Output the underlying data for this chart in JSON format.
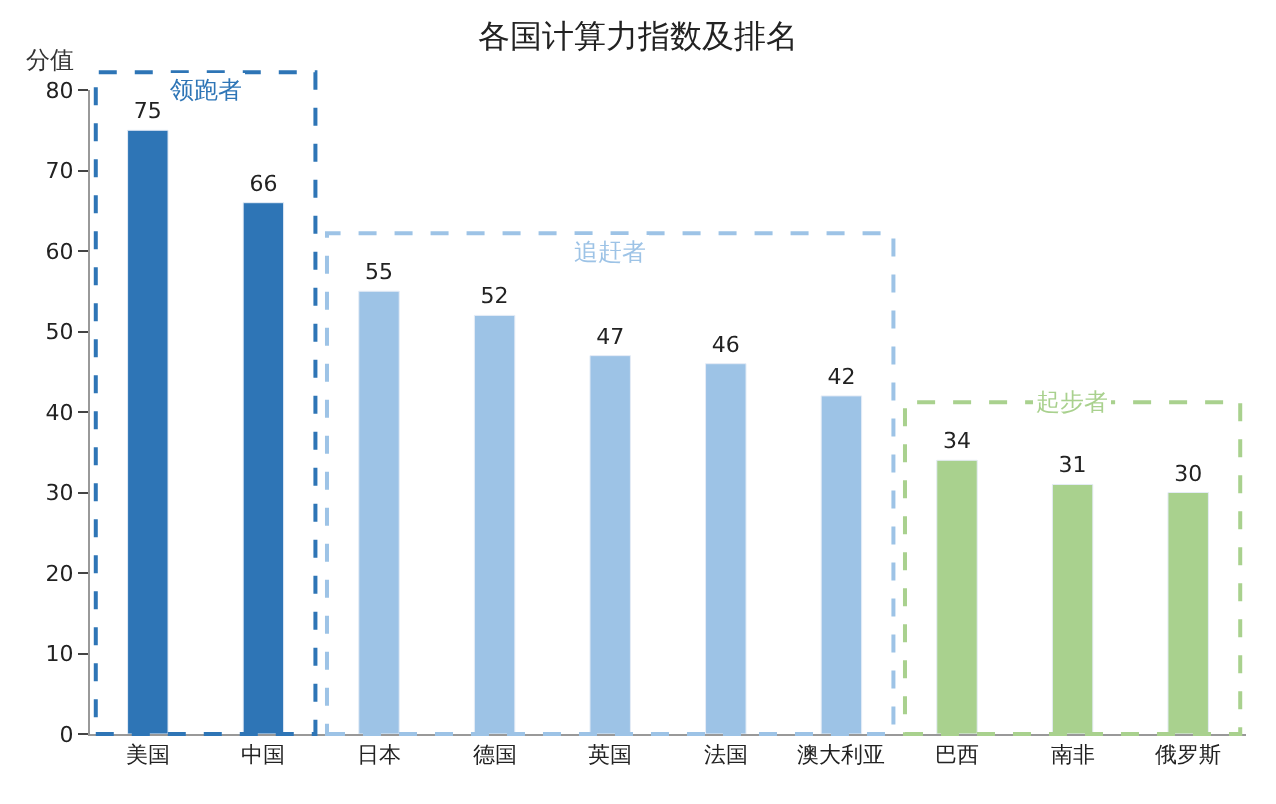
{
  "chart_data": {
    "type": "bar",
    "title": "各国计算力指数及排名",
    "ylabel": "分值",
    "categories": [
      "美国",
      "中国",
      "日本",
      "德国",
      "英国",
      "法国",
      "澳大利亚",
      "巴西",
      "南非",
      "俄罗斯"
    ],
    "series": [
      {
        "name": "领跑者",
        "color": "#2e75b6",
        "values": [
          75,
          66,
          null,
          null,
          null,
          null,
          null,
          null,
          null,
          null
        ]
      },
      {
        "name": "追赶者",
        "color": "#9dc3e6",
        "values": [
          null,
          null,
          55,
          52,
          47,
          46,
          42,
          null,
          null,
          null
        ]
      },
      {
        "name": "起步者",
        "color": "#a9d18e",
        "values": [
          null,
          null,
          null,
          null,
          null,
          null,
          null,
          34,
          31,
          30
        ]
      }
    ],
    "ylim": [
      0,
      80
    ],
    "yticks": [
      0,
      10,
      20,
      30,
      40,
      50,
      60,
      70,
      80
    ],
    "data_labels": true,
    "grid": false,
    "legend": false
  }
}
